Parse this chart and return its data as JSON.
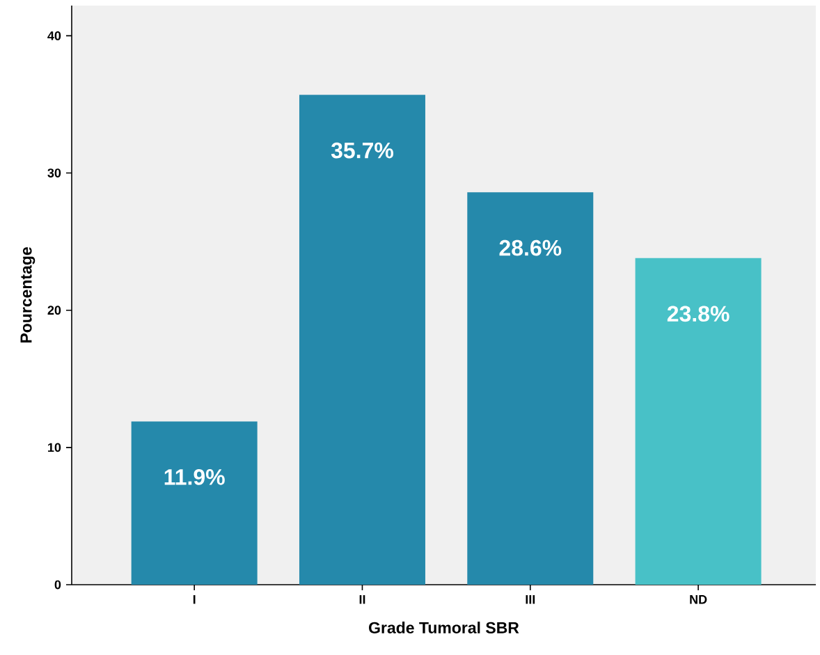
{
  "chart_data": {
    "type": "bar",
    "xlabel": "Grade Tumoral SBR",
    "ylabel": "Pourcentage",
    "categories": [
      "I",
      "II",
      "III",
      "ND"
    ],
    "values": [
      11.9,
      35.7,
      28.6,
      23.8
    ],
    "colors": [
      "#2589ab",
      "#2589ab",
      "#2589ab",
      "#48c1c7"
    ],
    "value_labels": [
      "11.9%",
      "35.7%",
      "28.6%",
      "23.8%"
    ],
    "ylim": [
      0,
      42.2
    ],
    "yticks": [
      0,
      10,
      20,
      30,
      40
    ],
    "grid": false
  }
}
